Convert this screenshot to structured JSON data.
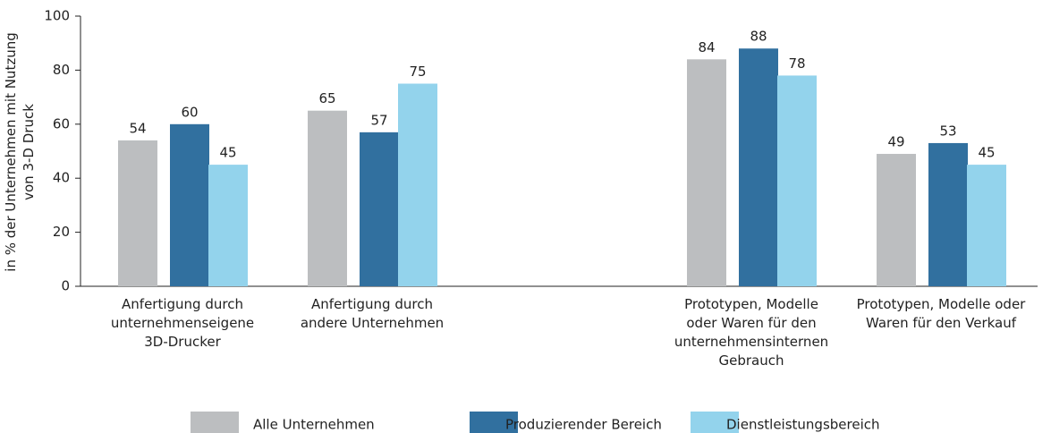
{
  "chart_data": {
    "type": "bar",
    "y_label": "in % der Unternehmen mit Nutzung\nvon 3-D Druck",
    "categories": [
      "Anfertigung durch\nunternehmenseigene\n3D-Drucker",
      "Anfertigung durch\nandere Unternehmen",
      null,
      "Prototypen, Modelle\noder Waren für den\nunternehmensinternen\nGebrauch",
      "Prototypen, Modelle oder\nWaren für den Verkauf"
    ],
    "series": [
      {
        "name": "Alle Unternehmen",
        "color": "#bcbec0",
        "values": [
          54,
          65,
          null,
          84,
          49
        ]
      },
      {
        "name": "Produzierender Bereich",
        "color": "#31709f",
        "values": [
          60,
          57,
          null,
          88,
          53
        ]
      },
      {
        "name": "Dienstleistungsbereich",
        "color": "#93d3ec",
        "values": [
          45,
          75,
          null,
          78,
          45
        ]
      }
    ],
    "ylim": [
      0,
      100
    ],
    "yticks": [
      0,
      20,
      40,
      60,
      80,
      100
    ],
    "grid": false,
    "legend": "bottom"
  }
}
